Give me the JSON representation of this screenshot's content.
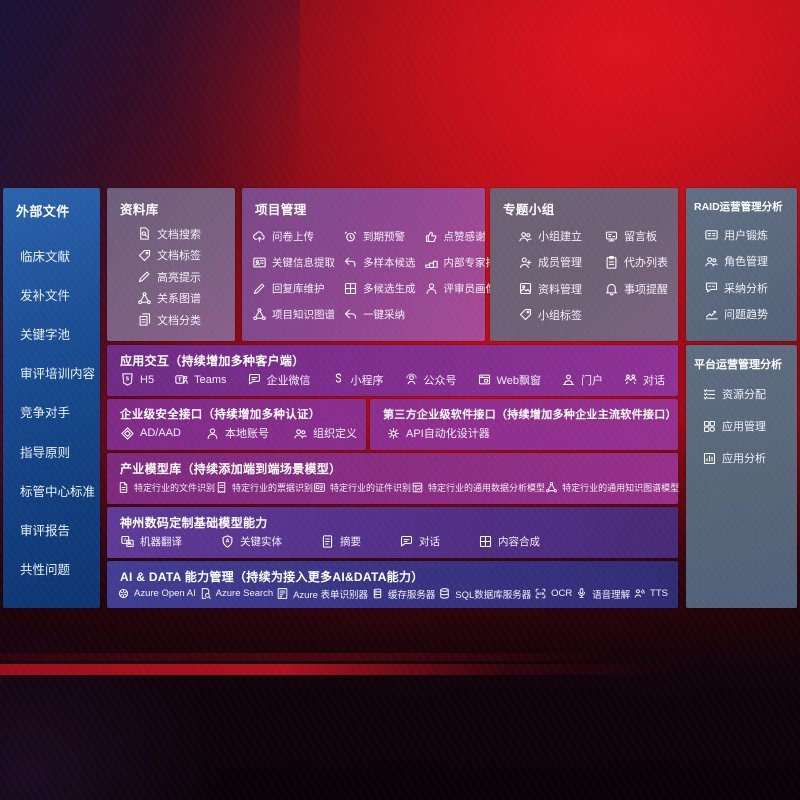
{
  "colors": {
    "bg_red": "#b80e19",
    "sidebar_blue": "#1b4e94",
    "panel_mauve": "#77607f",
    "panel_purple": "#8f4790",
    "panel_gray_purple": "#6f6175",
    "panel_slate": "#5a687e",
    "row_purple": "#7e2d8d",
    "row_magenta": "#8a2d83",
    "row_violet": "#533087",
    "row_indigo": "#383484"
  },
  "sidebar": {
    "title": "外部文件",
    "items": [
      "临床文献",
      "发补文件",
      "关键字池",
      "审评培训内容",
      "竞争对手",
      "指导原则",
      "标管中心标准",
      "审评报告",
      "共性问题"
    ]
  },
  "repository": {
    "title": "资料库",
    "items": [
      {
        "icon": "doc-search",
        "label": "文档搜索"
      },
      {
        "icon": "tag",
        "label": "文档标签"
      },
      {
        "icon": "pencil",
        "label": "高亮提示"
      },
      {
        "icon": "network",
        "label": "关系图谱"
      },
      {
        "icon": "doc-copy",
        "label": "文档分类"
      }
    ]
  },
  "project": {
    "title": "项目管理",
    "items": [
      {
        "icon": "cloud-up",
        "label": "问卷上传"
      },
      {
        "icon": "alarm",
        "label": "到期预警"
      },
      {
        "icon": "thumb",
        "label": "点赞感谢"
      },
      {
        "icon": "card",
        "label": "关键信息提取"
      },
      {
        "icon": "reply",
        "label": "多样本候选"
      },
      {
        "icon": "podium",
        "label": "内部专家排名"
      },
      {
        "icon": "pencil",
        "label": "回复库维护"
      },
      {
        "icon": "puzzle",
        "label": "多候选生成"
      },
      {
        "icon": "person",
        "label": "评审员画像"
      },
      {
        "icon": "network",
        "label": "项目知识图谱"
      },
      {
        "icon": "arrow-adopt",
        "label": "一键采纳"
      }
    ]
  },
  "groups": {
    "title": "专题小组",
    "items": [
      {
        "icon": "people",
        "label": "小组建立"
      },
      {
        "icon": "bbs",
        "label": "留言板"
      },
      {
        "icon": "person-add",
        "label": "成员管理"
      },
      {
        "icon": "clipboard",
        "label": "代办列表"
      },
      {
        "icon": "album",
        "label": "资料管理"
      },
      {
        "icon": "bell",
        "label": "事项提醒"
      },
      {
        "icon": "tag",
        "label": "小组标签"
      }
    ]
  },
  "raid": {
    "title": "RAID运营管理分析",
    "items": [
      {
        "icon": "id-card",
        "label": "用户锻炼"
      },
      {
        "icon": "people",
        "label": "角色管理"
      },
      {
        "icon": "chat-qa",
        "label": "采纳分析"
      },
      {
        "icon": "trend",
        "label": "问题趋势"
      }
    ]
  },
  "platform": {
    "title": "平台运营管理分析",
    "items": [
      {
        "icon": "list",
        "label": "资源分配"
      },
      {
        "icon": "grid",
        "label": "应用管理"
      },
      {
        "icon": "chart-doc",
        "label": "应用分析"
      }
    ]
  },
  "interaction": {
    "title": "应用交互（持续增加多种客户端）",
    "items": [
      {
        "icon": "h5",
        "label": "H5"
      },
      {
        "icon": "teams",
        "label": "Teams"
      },
      {
        "icon": "chat",
        "label": "企业微信"
      },
      {
        "icon": "mini",
        "label": "小程序"
      },
      {
        "icon": "oa",
        "label": "公众号"
      },
      {
        "icon": "webwin",
        "label": "Web飘窗"
      },
      {
        "icon": "portal",
        "label": "门户"
      },
      {
        "icon": "dialog",
        "label": "对话"
      }
    ]
  },
  "security": {
    "title": "企业级安全接口（持续增加多种认证）",
    "items": [
      {
        "icon": "diamond",
        "label": "AD/AAD"
      },
      {
        "icon": "person",
        "label": "本地账号"
      },
      {
        "icon": "people",
        "label": "组织定义"
      }
    ]
  },
  "thirdparty": {
    "title": "第三方企业级软件接口（持续增加多种企业主流软件接口）",
    "items": [
      {
        "icon": "gear",
        "label": "API自动化设计器"
      }
    ]
  },
  "industry_models": {
    "title": "产业模型库（持续添加端到端场景模型）",
    "items": [
      {
        "icon": "file",
        "label": "特定行业的文件识别"
      },
      {
        "icon": "receipt",
        "label": "特定行业的票据识别"
      },
      {
        "icon": "cert",
        "label": "特定行业的证件识别"
      },
      {
        "icon": "data-model",
        "label": "特定行业的通用数据分析模型"
      },
      {
        "icon": "network",
        "label": "特定行业的通用知识图谱模型"
      }
    ]
  },
  "base_models": {
    "title": "神州数码定制基础模型能力",
    "items": [
      {
        "icon": "translate",
        "label": "机器翻译"
      },
      {
        "icon": "shield-a",
        "label": "关键实体"
      },
      {
        "icon": "summary",
        "label": "摘要"
      },
      {
        "icon": "chat",
        "label": "对话"
      },
      {
        "icon": "puzzle",
        "label": "内容合成"
      }
    ]
  },
  "ai_data": {
    "title": "AI & DATA 能力管理（持续为接入更多AI&DATA能力）",
    "items": [
      {
        "icon": "openai",
        "label": "Azure Open AI"
      },
      {
        "icon": "search-doc",
        "label": "Azure Search"
      },
      {
        "icon": "form",
        "label": "Azure 表单识别器"
      },
      {
        "icon": "server",
        "label": "缓存服务器"
      },
      {
        "icon": "db",
        "label": "SQL数据库服务器"
      },
      {
        "icon": "ocr",
        "label": "OCR"
      },
      {
        "icon": "speech",
        "label": "语音理解"
      },
      {
        "icon": "tts",
        "label": "TTS"
      }
    ]
  }
}
